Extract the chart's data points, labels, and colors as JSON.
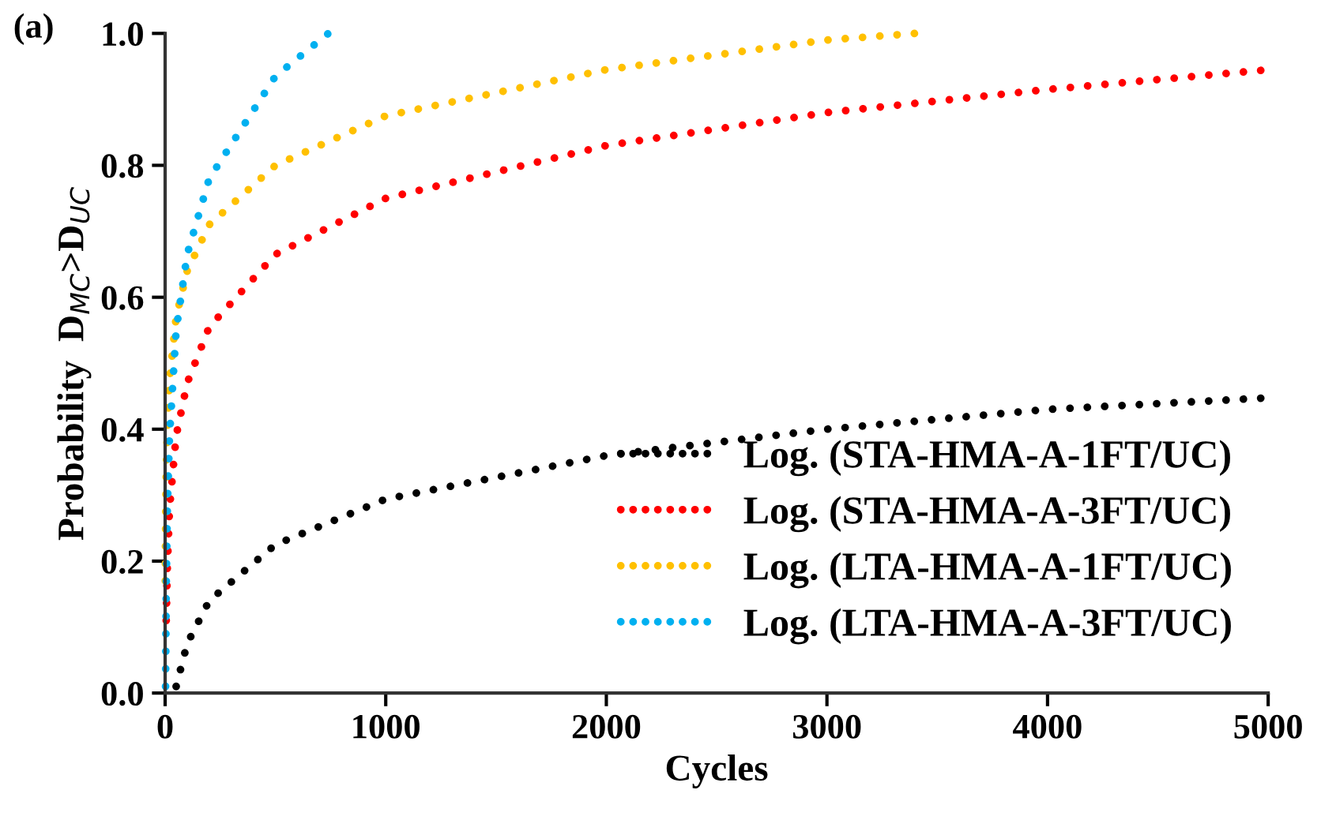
{
  "chart_data": {
    "type": "line",
    "title": "(a)",
    "xlabel": "Cycles",
    "ylabel": "Probability  D$_{MC}$>D$_{UC}$",
    "xlim": [
      0,
      5000
    ],
    "ylim": [
      0,
      1.0
    ],
    "xticks": [
      0,
      1000,
      2000,
      3000,
      4000,
      5000
    ],
    "yticks": [
      {
        "value": 0,
        "label": "0.0"
      },
      {
        "value": 0.2,
        "label": "0.2"
      },
      {
        "value": 0.4,
        "label": "0.4"
      },
      {
        "value": 0.6,
        "label": "0.6"
      },
      {
        "value": 0.8,
        "label": "0.8"
      },
      {
        "value": 1.0,
        "label": "1.0"
      }
    ],
    "grid": false,
    "legend": "bottom right",
    "line_style": "dotted",
    "marker": "none",
    "series": [
      {
        "name": "Log. (STA-HMA-A-1FT/UC)",
        "color": "#000000",
        "x": [
          50,
          100,
          200,
          500,
          1000,
          2000,
          3000,
          4000,
          4970
        ],
        "values": [
          0.01,
          0.075,
          0.14,
          0.225,
          0.294,
          0.36,
          0.4,
          0.43,
          0.447
        ]
      },
      {
        "name": "Log. (STA-HMA-A-3FT/UC)",
        "color": "#ff0000",
        "x": [
          5,
          10,
          20,
          50,
          100,
          200,
          500,
          1000,
          2000,
          3000,
          4000,
          4970
        ],
        "values": [
          0.11,
          0.19,
          0.28,
          0.39,
          0.47,
          0.555,
          0.665,
          0.75,
          0.83,
          0.88,
          0.915,
          0.944
        ]
      },
      {
        "name": "Log. (LTA-HMA-A-1FT/UC)",
        "color": "#ffc000",
        "x": [
          1,
          2,
          5,
          10,
          20,
          50,
          100,
          200,
          500,
          1000,
          2000,
          3000,
          3400
        ],
        "values": [
          0.17,
          0.24,
          0.33,
          0.4,
          0.475,
          0.57,
          0.64,
          0.71,
          0.8,
          0.875,
          0.945,
          0.99,
          1.0
        ]
      },
      {
        "name": "Log. (LTA-HMA-A-3FT/UC)",
        "color": "#00b0f0",
        "x": [
          2,
          5,
          10,
          20,
          50,
          100,
          200,
          500,
          740
        ],
        "values": [
          0.01,
          0.16,
          0.28,
          0.39,
          0.55,
          0.665,
          0.78,
          0.935,
          1.0
        ]
      }
    ]
  }
}
